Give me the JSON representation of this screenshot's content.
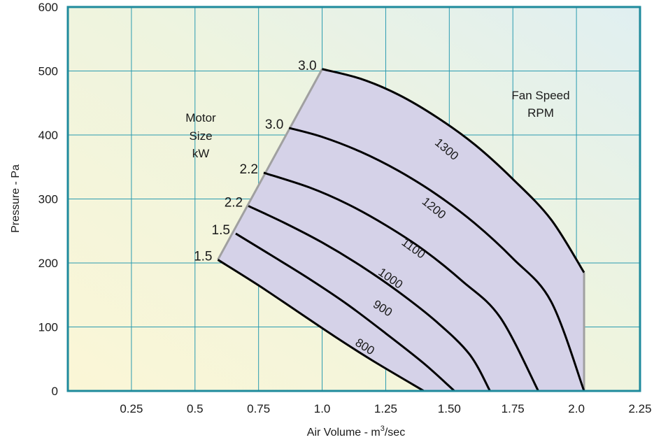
{
  "chart_data": {
    "type": "line",
    "title": "",
    "xlabel": "Air Volume - m",
    "xlabel_sup": "3",
    "xlabel_suffix": "/sec",
    "ylabel": "Pressure - Pa",
    "xlim": [
      0,
      2.25
    ],
    "ylim": [
      0,
      600
    ],
    "x_ticks": [
      "0.25",
      "0.5",
      "0.75",
      "1.0",
      "1.25",
      "1.50",
      "1.75",
      "2.0",
      "2.25"
    ],
    "x_tick_values": [
      0.25,
      0.5,
      0.75,
      1.0,
      1.25,
      1.5,
      1.75,
      2.0,
      2.25
    ],
    "y_ticks": [
      "0",
      "100",
      "200",
      "300",
      "400",
      "500",
      "600"
    ],
    "y_tick_values": [
      0,
      100,
      200,
      300,
      400,
      500,
      600
    ],
    "grid": true,
    "annotations": {
      "motor_title": [
        "Motor",
        "Size",
        "kW"
      ],
      "speed_title": [
        "Fan Speed",
        "RPM"
      ]
    },
    "colors": {
      "frame": "#1e8a9c",
      "grid": "#2a9bb0",
      "region": "#d5d2e8",
      "boundary": "#a0a0a0",
      "curve": "#000000",
      "bg_left": "#fbf7d8",
      "bg_right": "#e2f1f0"
    },
    "series": [
      {
        "name": "800",
        "motor": "1.5",
        "points": [
          [
            0.59,
            205
          ],
          [
            0.75,
            165
          ],
          [
            0.9,
            125
          ],
          [
            1.05,
            85
          ],
          [
            1.2,
            47
          ],
          [
            1.4,
            0
          ]
        ]
      },
      {
        "name": "900",
        "motor": "1.5",
        "points": [
          [
            0.66,
            246
          ],
          [
            0.8,
            212
          ],
          [
            0.95,
            175
          ],
          [
            1.1,
            135
          ],
          [
            1.25,
            90
          ],
          [
            1.4,
            43
          ],
          [
            1.52,
            0
          ]
        ]
      },
      {
        "name": "1000",
        "motor": "2.2",
        "points": [
          [
            0.71,
            289
          ],
          [
            0.85,
            263
          ],
          [
            1.0,
            232
          ],
          [
            1.15,
            196
          ],
          [
            1.3,
            155
          ],
          [
            1.45,
            108
          ],
          [
            1.58,
            57
          ],
          [
            1.66,
            0
          ]
        ]
      },
      {
        "name": "1100",
        "motor": "2.2",
        "points": [
          [
            0.77,
            341
          ],
          [
            0.95,
            318
          ],
          [
            1.1,
            292
          ],
          [
            1.25,
            259
          ],
          [
            1.4,
            220
          ],
          [
            1.55,
            172
          ],
          [
            1.7,
            115
          ],
          [
            1.85,
            0
          ]
        ]
      },
      {
        "name": "1200",
        "motor": "3.0",
        "points": [
          [
            0.87,
            411
          ],
          [
            1.0,
            397
          ],
          [
            1.15,
            374
          ],
          [
            1.3,
            344
          ],
          [
            1.45,
            307
          ],
          [
            1.6,
            262
          ],
          [
            1.75,
            207
          ],
          [
            1.9,
            140
          ],
          [
            2.03,
            0
          ]
        ]
      },
      {
        "name": "1300",
        "motor": "3.0",
        "points": [
          [
            1.0,
            503
          ],
          [
            1.15,
            488
          ],
          [
            1.3,
            463
          ],
          [
            1.45,
            428
          ],
          [
            1.6,
            385
          ],
          [
            1.75,
            331
          ],
          [
            1.9,
            268
          ],
          [
            2.03,
            185
          ]
        ]
      }
    ],
    "boundary": {
      "left_edge": [
        [
          0.59,
          205
        ],
        [
          1.0,
          503
        ]
      ],
      "right_edge": [
        [
          2.03,
          185
        ],
        [
          2.03,
          0
        ]
      ]
    }
  }
}
